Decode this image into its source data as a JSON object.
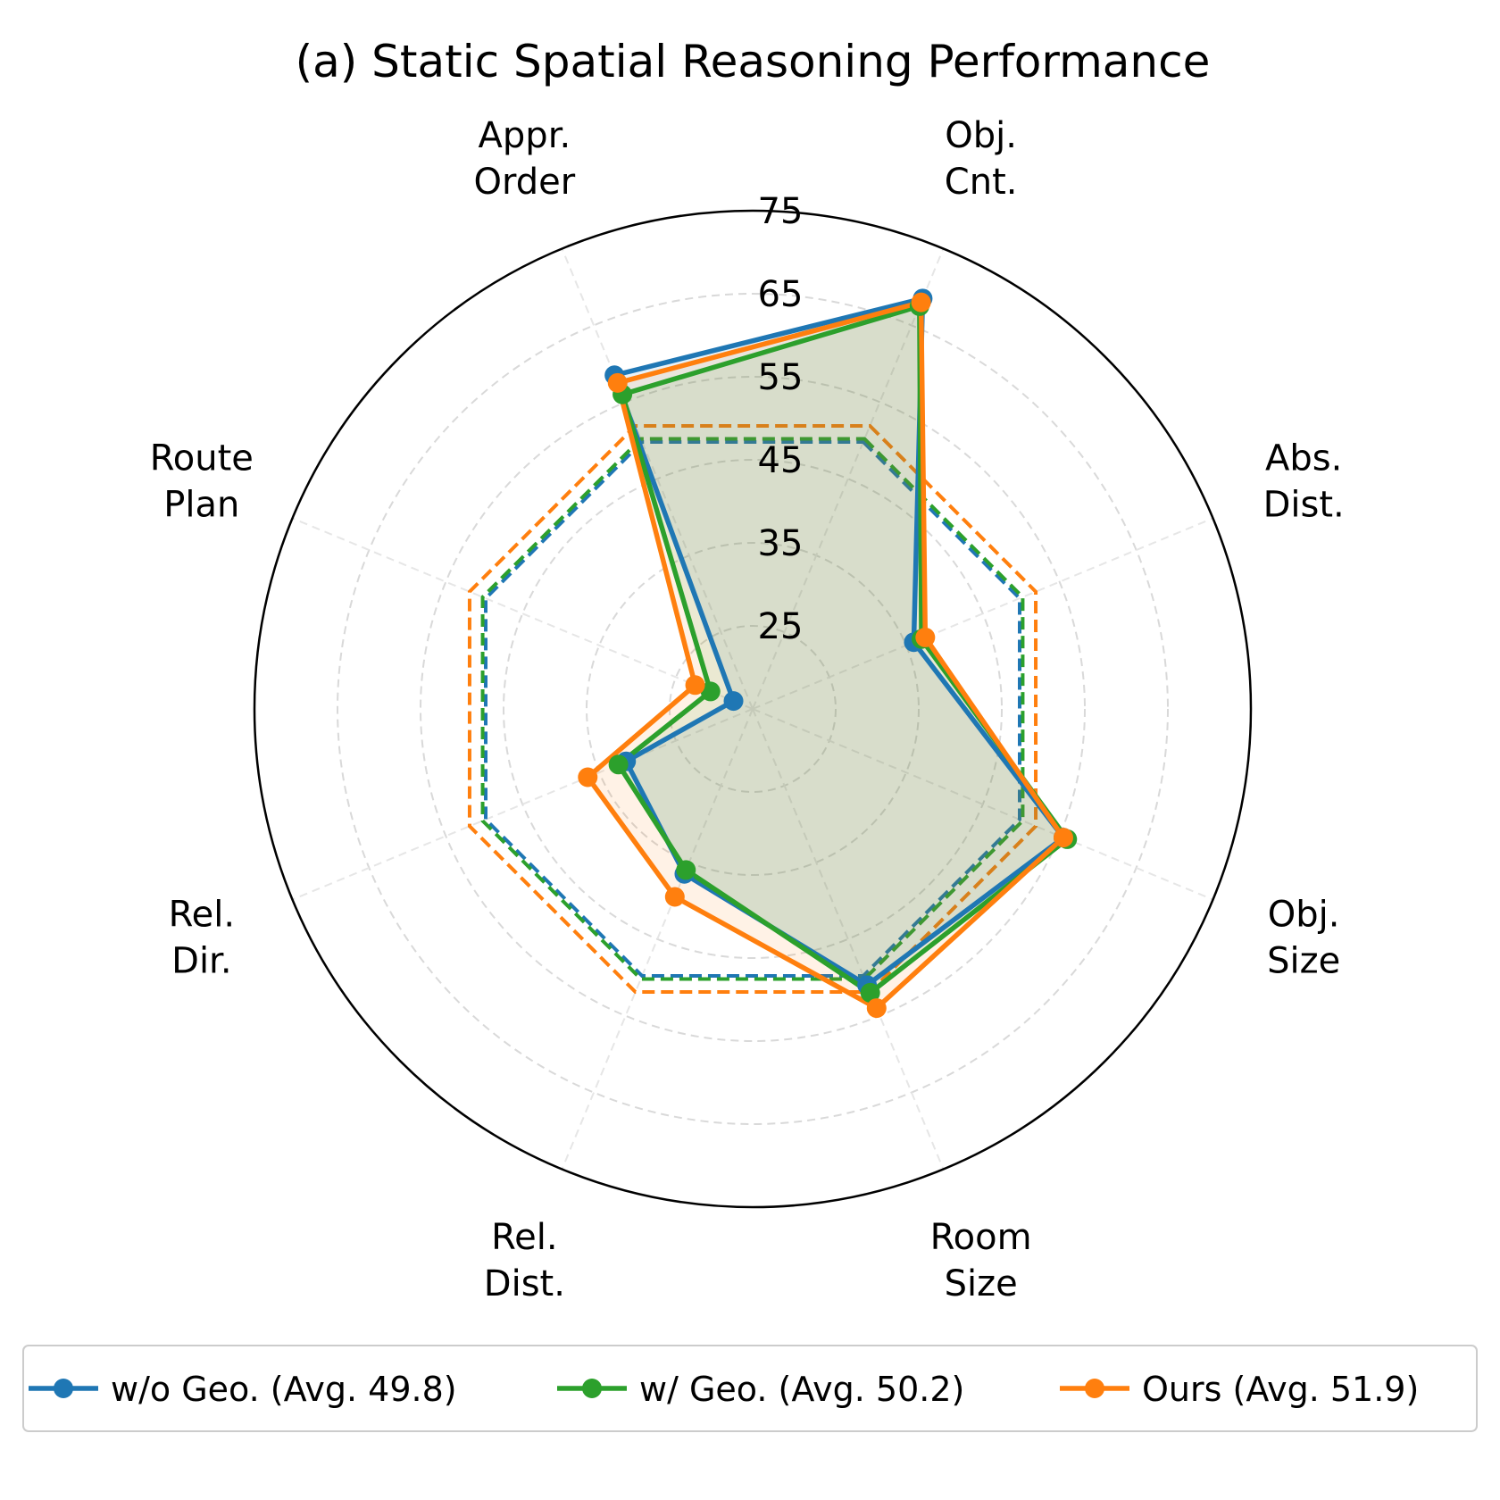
{
  "chart_data": {
    "type": "radar",
    "title": "(a) Static Spatial Reasoning Performance",
    "categories": [
      "Obj.\nCnt.",
      "Abs.\nDist.",
      "Obj.\nSize",
      "Room\nSize",
      "Rel.\nDist.",
      "Rel.\nDir.",
      "Route\nPlan",
      "Appr.\nOrder"
    ],
    "r_ticks": [
      25,
      35,
      45,
      55,
      65,
      75
    ],
    "rlim": [
      15,
      75
    ],
    "grid": true,
    "legend_position": "bottom",
    "series": [
      {
        "name": "w/o Geo. (Avg. 49.8)",
        "color": "#1f77b4",
        "values": [
          68.5,
          36.0,
          55.5,
          51.0,
          36.5,
          31.5,
          17.5,
          58.5
        ],
        "avg": 49.8
      },
      {
        "name": "w/ Geo. (Avg. 50.2)",
        "color": "#2ca02c",
        "values": [
          67.5,
          37.0,
          56.0,
          52.0,
          36.0,
          32.5,
          20.5,
          56.0
        ],
        "avg": 50.2
      },
      {
        "name": "Ours (Avg. 51.9)",
        "color": "#ff7f0e",
        "values": [
          68.0,
          37.5,
          55.5,
          54.0,
          39.5,
          36.5,
          22.5,
          57.5
        ],
        "avg": 51.9
      }
    ]
  }
}
